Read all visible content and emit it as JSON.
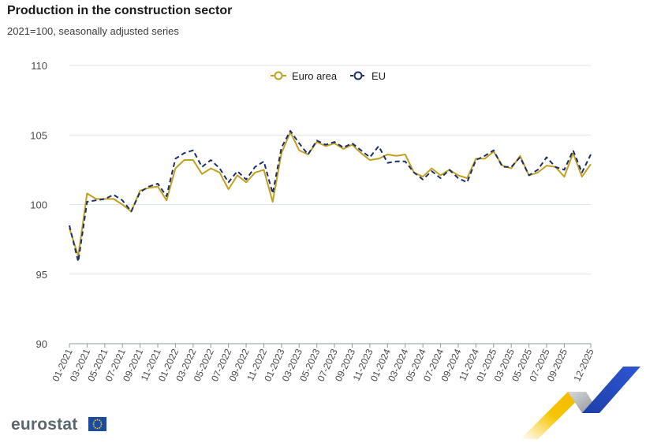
{
  "header": {
    "title": "Production in the construction sector",
    "subtitle": "2021=100, seasonally adjusted series"
  },
  "branding": {
    "logo_text": "eurostat"
  },
  "chart_data": {
    "type": "line",
    "ylim": [
      90,
      110
    ],
    "yticks": [
      "110",
      "105",
      "100",
      "95",
      "90"
    ],
    "grid": true,
    "legend_position": "top-center",
    "colors": {
      "euro_area": "#c1a01e",
      "eu": "#1a2e6c",
      "grid": "#dde6ea",
      "axis": "#8a9aa4"
    },
    "x": [
      "01-2021",
      "02-2021",
      "03-2021",
      "04-2021",
      "05-2021",
      "06-2021",
      "07-2021",
      "08-2021",
      "09-2021",
      "10-2021",
      "11-2021",
      "12-2021",
      "01-2022",
      "02-2022",
      "03-2022",
      "04-2022",
      "05-2022",
      "06-2022",
      "07-2022",
      "08-2022",
      "09-2022",
      "10-2022",
      "11-2022",
      "12-2022",
      "01-2023",
      "02-2023",
      "03-2023",
      "04-2023",
      "05-2023",
      "06-2023",
      "07-2023",
      "08-2023",
      "09-2023",
      "10-2023",
      "11-2023",
      "12-2023",
      "01-2024",
      "02-2024",
      "03-2024",
      "04-2024",
      "05-2024",
      "06-2024",
      "07-2024",
      "08-2024",
      "09-2024",
      "10-2024",
      "11-2024",
      "12-2024",
      "01-2025",
      "02-2025",
      "03-2025",
      "04-2025",
      "05-2025",
      "06-2025",
      "07-2025",
      "08-2025",
      "09-2025",
      "10-2025",
      "11-2025",
      "12-2025"
    ],
    "xtick_labels": [
      "01-2021",
      "03-2021",
      "05-2021",
      "07-2021",
      "09-2021",
      "11-2021",
      "01-2022",
      "03-2022",
      "05-2022",
      "07-2022",
      "09-2022",
      "11-2022",
      "01-2023",
      "03-2023",
      "05-2023",
      "07-2023",
      "09-2023",
      "11-2023",
      "01-2024",
      "03-2024",
      "05-2024",
      "07-2024",
      "09-2024",
      "11-2024",
      "01-2025",
      "03-2025",
      "05-2025",
      "07-2025",
      "09-2025",
      "12-2025"
    ],
    "series": [
      {
        "name": "Euro area",
        "values": [
          98.3,
          96.3,
          100.8,
          100.4,
          100.4,
          100.4,
          100.0,
          99.5,
          101.0,
          101.2,
          101.3,
          100.3,
          102.6,
          103.2,
          103.2,
          102.2,
          102.6,
          102.3,
          101.1,
          102.1,
          101.6,
          102.3,
          102.5,
          100.2,
          103.7,
          105.2,
          103.9,
          103.6,
          104.5,
          104.2,
          104.4,
          104.0,
          104.3,
          103.7,
          103.2,
          103.3,
          103.6,
          103.5,
          103.6,
          102.3,
          102.0,
          102.6,
          102.1,
          102.5,
          102.1,
          101.9,
          103.3,
          103.3,
          103.8,
          102.8,
          102.6,
          103.5,
          102.1,
          102.3,
          102.8,
          102.7,
          102.0,
          103.7,
          102.0,
          102.9
        ]
      },
      {
        "name": "EU",
        "values": [
          98.5,
          95.9,
          100.2,
          100.3,
          100.4,
          100.7,
          100.3,
          99.5,
          100.9,
          101.3,
          101.5,
          100.6,
          103.3,
          103.7,
          103.9,
          102.7,
          103.2,
          102.6,
          101.6,
          102.4,
          101.8,
          102.7,
          103.1,
          100.8,
          104.1,
          105.3,
          104.4,
          103.6,
          104.6,
          104.3,
          104.5,
          104.1,
          104.4,
          103.9,
          103.4,
          104.2,
          103.0,
          103.1,
          103.1,
          102.3,
          101.8,
          102.4,
          101.9,
          102.5,
          101.9,
          101.6,
          103.2,
          103.5,
          103.9,
          102.7,
          102.7,
          103.4,
          102.1,
          102.5,
          103.4,
          102.7,
          102.5,
          103.9,
          102.3,
          103.6
        ]
      }
    ]
  }
}
